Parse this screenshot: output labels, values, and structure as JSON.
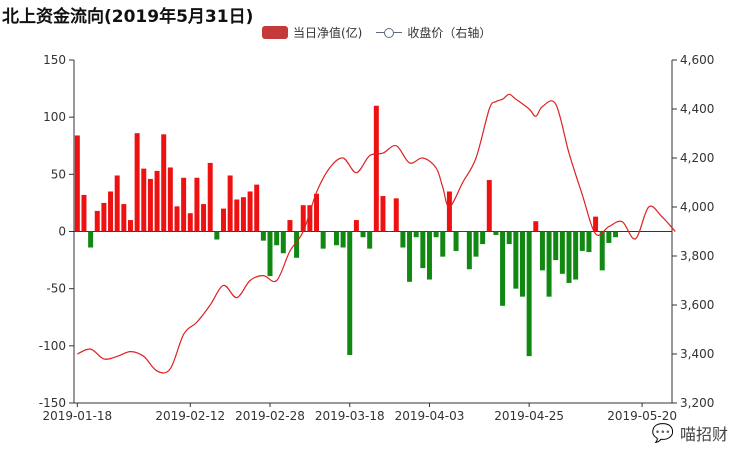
{
  "chart_data": {
    "type": "bar+line",
    "title": "北上资金流向(2019年5月31日)",
    "legend": [
      {
        "name": "当日净值(亿)",
        "color": "#cc3333",
        "kind": "bar"
      },
      {
        "name": "收盘价（右轴）",
        "color": "#5d6b7d",
        "kind": "line"
      }
    ],
    "colors": {
      "positive": "#ee1111",
      "negative": "#118811",
      "line": "#dd2222",
      "axis": "#333333"
    },
    "x_tick_labels": [
      "2019-01-18",
      "2019-02-12",
      "2019-02-28",
      "2019-03-18",
      "2019-04-03",
      "2019-04-25",
      "2019-05-20"
    ],
    "x_tick_positions": [
      0,
      17,
      29,
      41,
      53,
      68,
      85
    ],
    "y_left": {
      "min": -150,
      "max": 150,
      "ticks": [
        -150,
        -100,
        -50,
        0,
        50,
        100,
        150
      ]
    },
    "y_right": {
      "min": 3200,
      "max": 4600,
      "ticks": [
        3200,
        3400,
        3600,
        3800,
        4000,
        4200,
        4400,
        4600
      ]
    },
    "series": [
      {
        "name": "当日净值(亿)",
        "type": "bar",
        "values": [
          84,
          32,
          -14,
          18,
          25,
          35,
          49,
          24,
          10,
          86,
          55,
          46,
          53,
          85,
          56,
          22,
          47,
          16,
          47,
          24,
          60,
          -7,
          20,
          49,
          28,
          30,
          35,
          41,
          -8,
          -39,
          -12,
          -19,
          10,
          -23,
          23,
          23,
          33,
          -15,
          0,
          -12,
          -14,
          -108,
          10,
          -5,
          -15,
          110,
          31,
          0,
          29,
          -14,
          -44,
          -5,
          -32,
          -42,
          -5,
          -22,
          35,
          -17,
          0,
          -33,
          -22,
          -11,
          45,
          -3,
          -65,
          -11,
          -50,
          -57,
          -109,
          9,
          -34,
          -57,
          -25,
          -37,
          -45,
          -42,
          -17,
          -18,
          13,
          -34,
          -10,
          -5
        ],
        "x": [
          0,
          1,
          2,
          3,
          4,
          5,
          6,
          7,
          8,
          9,
          10,
          11,
          12,
          13,
          14,
          15,
          16,
          17,
          18,
          19,
          20,
          21,
          22,
          23,
          24,
          25,
          26,
          27,
          28,
          29,
          30,
          31,
          32,
          33,
          34,
          35,
          36,
          37,
          38,
          39,
          40,
          41,
          42,
          43,
          44,
          45,
          46,
          47,
          48,
          49,
          50,
          51,
          52,
          53,
          54,
          55,
          56,
          57,
          58,
          59,
          60,
          61,
          62,
          63,
          64,
          65,
          66,
          67,
          68,
          69,
          70,
          71,
          72,
          73,
          74,
          75,
          76,
          77,
          78,
          79,
          80,
          81
        ]
      },
      {
        "name": "收盘价（右轴）",
        "type": "line",
        "axis": "right",
        "x": [
          0,
          2,
          4,
          6,
          8,
          10,
          12,
          14,
          16,
          18,
          20,
          22,
          24,
          26,
          28,
          30,
          32,
          34,
          36,
          38,
          40,
          42,
          44,
          46,
          48,
          50,
          52,
          54,
          55,
          56,
          58,
          60,
          62,
          63,
          64,
          65,
          66,
          68,
          69,
          70,
          72,
          74,
          76,
          78,
          80,
          82,
          84,
          86,
          88,
          90
        ],
        "values": [
          3400,
          3420,
          3380,
          3390,
          3410,
          3390,
          3330,
          3340,
          3480,
          3530,
          3600,
          3680,
          3630,
          3700,
          3720,
          3700,
          3820,
          3900,
          4060,
          4160,
          4200,
          4140,
          4210,
          4220,
          4250,
          4180,
          4200,
          4160,
          4080,
          4000,
          4100,
          4200,
          4400,
          4430,
          4440,
          4460,
          4440,
          4400,
          4370,
          4410,
          4420,
          4220,
          4050,
          3890,
          3920,
          3940,
          3870,
          4000,
          3960,
          3900
        ]
      }
    ]
  },
  "watermark": {
    "text": "喵招财",
    "icon": "wechat-icon"
  }
}
